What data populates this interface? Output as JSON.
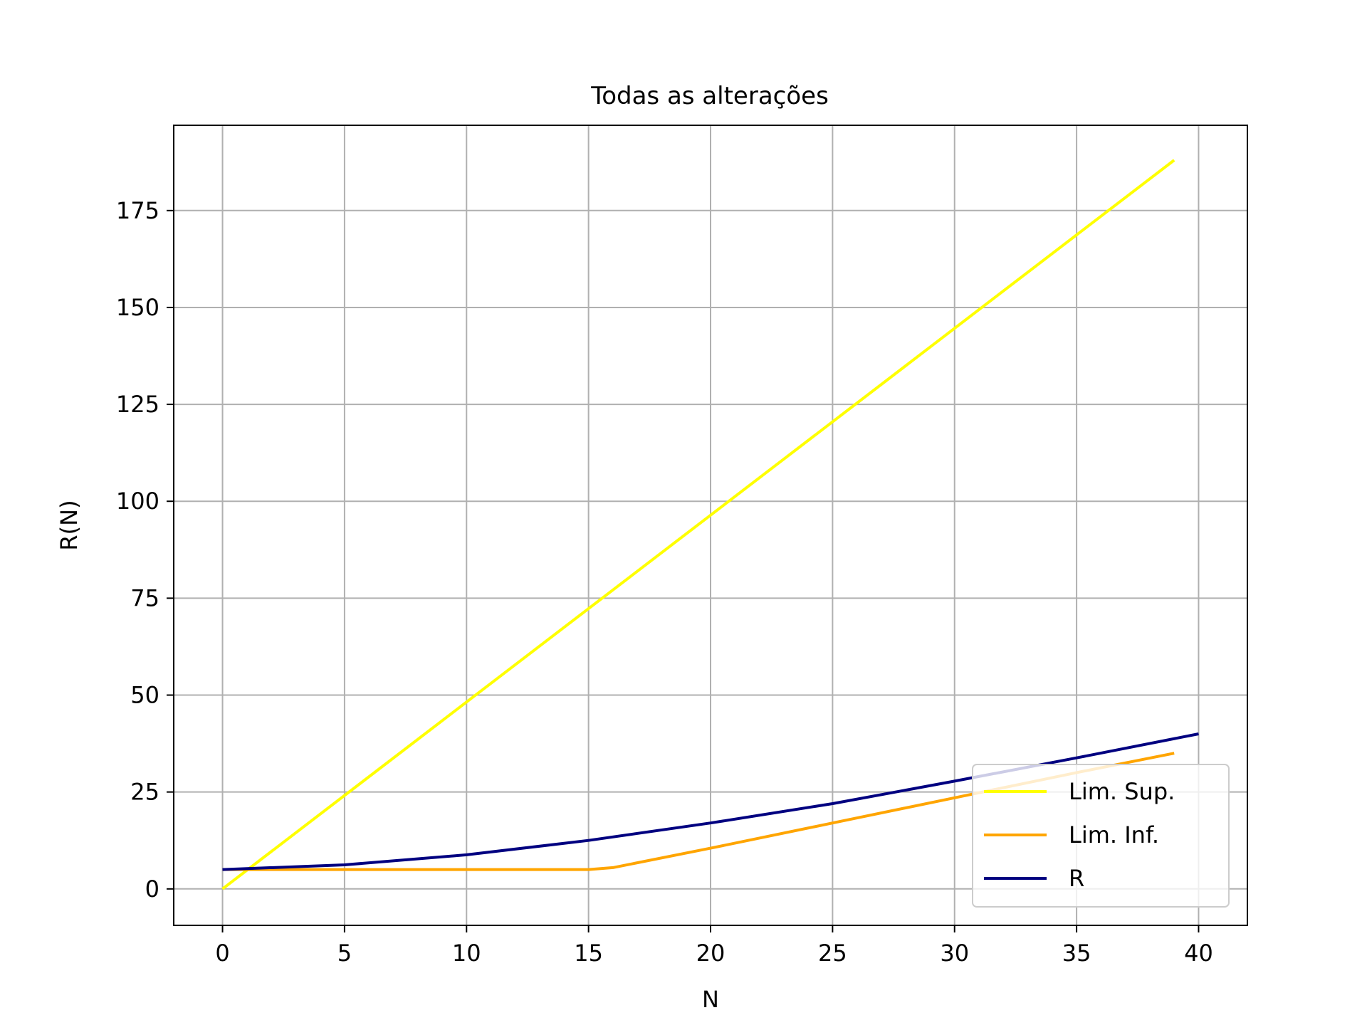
{
  "chart_data": {
    "type": "line",
    "title": "Todas as alterações",
    "xlabel": "N",
    "ylabel": "R(N)",
    "xlim": [
      -2,
      42
    ],
    "ylim": [
      -9.4,
      197
    ],
    "x_ticks": [
      0,
      5,
      10,
      15,
      20,
      25,
      30,
      35,
      40
    ],
    "y_ticks": [
      0,
      25,
      50,
      75,
      100,
      125,
      150,
      175
    ],
    "grid": true,
    "legend_position": "lower-right",
    "series": [
      {
        "name": "Lim. Sup.",
        "color": "#ffff00",
        "x": [
          0,
          39
        ],
        "y": [
          0,
          188
        ]
      },
      {
        "name": "Lim. Inf.",
        "color": "#ffa500",
        "x": [
          0,
          1,
          5,
          10,
          15,
          16,
          20,
          25,
          30,
          35,
          39
        ],
        "y": [
          5,
          5,
          5,
          5,
          5,
          5.5,
          10.5,
          17,
          23.5,
          30,
          35
        ]
      },
      {
        "name": "R",
        "color": "#000080",
        "x": [
          0,
          5,
          10,
          15,
          20,
          25,
          30,
          35,
          40
        ],
        "y": [
          5,
          6.2,
          8.8,
          12.5,
          17,
          22,
          27.8,
          33.8,
          40
        ]
      }
    ]
  }
}
